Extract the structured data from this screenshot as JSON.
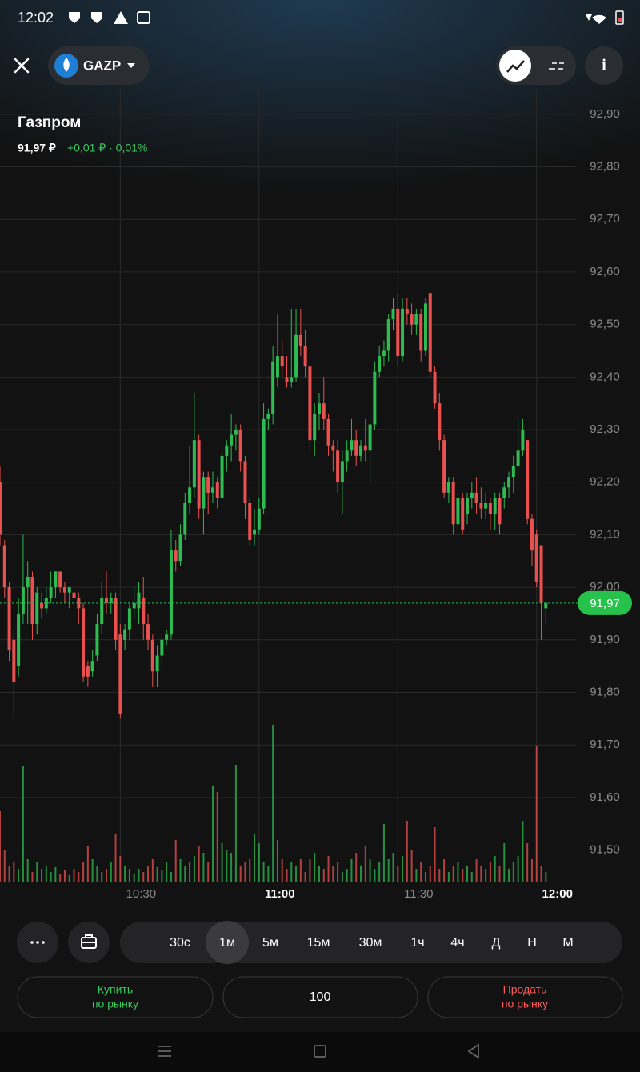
{
  "status_bar": {
    "time": "12:02"
  },
  "header": {
    "ticker": "GAZP",
    "name": "Газпром",
    "price": "91,97 ₽",
    "change": "+0,01 ₽ · 0,01%"
  },
  "chart_data": {
    "type": "candlestick",
    "x": [
      "10:04",
      "10:05",
      "10:06",
      "10:07",
      "10:08",
      "10:09",
      "10:10",
      "10:11",
      "10:12",
      "10:13",
      "10:14",
      "10:15",
      "10:16",
      "10:17",
      "10:18",
      "10:19",
      "10:20",
      "10:21",
      "10:22",
      "10:23",
      "10:24",
      "10:25",
      "10:26",
      "10:27",
      "10:28",
      "10:29",
      "10:30",
      "10:31",
      "10:32",
      "10:33",
      "10:34",
      "10:35",
      "10:36",
      "10:37",
      "10:38",
      "10:39",
      "10:40",
      "10:41",
      "10:42",
      "10:43",
      "10:44",
      "10:45",
      "10:46",
      "10:47",
      "10:48",
      "10:49",
      "10:50",
      "10:51",
      "10:52",
      "10:53",
      "10:54",
      "10:55",
      "10:56",
      "10:57",
      "10:58",
      "10:59",
      "11:00",
      "11:01",
      "11:02",
      "11:03",
      "11:04",
      "11:05",
      "11:06",
      "11:07",
      "11:08",
      "11:09",
      "11:10",
      "11:11",
      "11:12",
      "11:13",
      "11:14",
      "11:15",
      "11:16",
      "11:17",
      "11:18",
      "11:19",
      "11:20",
      "11:21",
      "11:22",
      "11:23",
      "11:24",
      "11:25",
      "11:26",
      "11:27",
      "11:28",
      "11:29",
      "11:30",
      "11:31",
      "11:32",
      "11:33",
      "11:34",
      "11:35",
      "11:36",
      "11:37",
      "11:38",
      "11:39",
      "11:40",
      "11:41",
      "11:42",
      "11:43",
      "11:44",
      "11:45",
      "11:46",
      "11:47",
      "11:48",
      "11:49",
      "11:50",
      "11:51",
      "11:52",
      "11:53",
      "11:54",
      "11:55",
      "11:56",
      "11:57",
      "11:58",
      "11:59",
      "12:00",
      "12:01",
      "12:02"
    ],
    "open": [
      92.2,
      92.08,
      92.0,
      91.9,
      91.85,
      91.95,
      92.0,
      92.02,
      91.93,
      91.97,
      91.96,
      91.98,
      92.0,
      92.03,
      92.0,
      91.99,
      91.99,
      91.98,
      91.96,
      91.85,
      91.84,
      91.87,
      91.93,
      91.98,
      91.97,
      91.98,
      91.91,
      91.9,
      91.92,
      91.96,
      91.96,
      91.98,
      91.93,
      91.9,
      91.84,
      91.87,
      91.9,
      91.91,
      92.07,
      92.05,
      92.1,
      92.16,
      92.19,
      92.28,
      92.15,
      92.21,
      92.18,
      92.2,
      92.17,
      92.25,
      92.27,
      92.29,
      92.3,
      92.24,
      92.16,
      92.1,
      92.11,
      92.15,
      92.32,
      92.33,
      92.4,
      92.44,
      92.4,
      92.39,
      92.4,
      92.48,
      92.46,
      92.42,
      92.28,
      92.33,
      92.35,
      92.32,
      92.27,
      92.26,
      92.2,
      92.24,
      92.26,
      92.28,
      92.25,
      92.27,
      92.26,
      92.31,
      92.41,
      92.44,
      92.45,
      92.51,
      92.53,
      92.44,
      92.53,
      92.52,
      92.5,
      92.52,
      92.45,
      92.56,
      92.41,
      92.35,
      92.28,
      92.18,
      92.2,
      92.12,
      92.17,
      92.14,
      92.17,
      92.18,
      92.16,
      92.15,
      92.16,
      92.14,
      92.17,
      92.17,
      92.19,
      92.21,
      92.23,
      92.26,
      92.28,
      92.13,
      92.1,
      92.08,
      91.96
    ],
    "high": [
      92.23,
      92.09,
      92.01,
      91.92,
      91.98,
      92.1,
      92.05,
      92.03,
      92.0,
      91.99,
      92.0,
      92.03,
      92.03,
      92.03,
      92.01,
      92.0,
      92.0,
      91.99,
      91.97,
      91.86,
      91.88,
      91.95,
      92.01,
      92.03,
      91.99,
      91.99,
      91.93,
      91.93,
      91.97,
      92.0,
      92.01,
      92.02,
      91.95,
      91.91,
      91.89,
      91.91,
      91.92,
      92.11,
      92.09,
      92.12,
      92.18,
      92.27,
      92.37,
      92.29,
      92.22,
      92.22,
      92.22,
      92.21,
      92.26,
      92.28,
      92.33,
      92.31,
      92.31,
      92.25,
      92.17,
      92.15,
      92.17,
      92.35,
      92.34,
      92.46,
      92.52,
      92.47,
      92.44,
      92.53,
      92.53,
      92.53,
      92.49,
      92.43,
      92.35,
      92.37,
      92.4,
      92.33,
      92.28,
      92.28,
      92.26,
      92.28,
      92.32,
      92.3,
      92.28,
      92.32,
      92.33,
      92.43,
      92.46,
      92.47,
      92.52,
      92.55,
      92.56,
      92.55,
      92.55,
      92.54,
      92.53,
      92.53,
      92.55,
      92.56,
      92.42,
      92.37,
      92.29,
      92.21,
      92.21,
      92.18,
      92.18,
      92.18,
      92.2,
      92.21,
      92.19,
      92.18,
      92.17,
      92.18,
      92.18,
      92.2,
      92.22,
      92.25,
      92.32,
      92.32,
      92.28,
      92.14,
      92.11,
      92.08,
      91.97
    ],
    "low": [
      92.08,
      91.98,
      91.86,
      91.75,
      91.83,
      91.93,
      91.93,
      91.9,
      91.91,
      91.94,
      91.95,
      91.97,
      91.98,
      91.99,
      91.97,
      91.96,
      91.95,
      91.93,
      91.82,
      91.81,
      91.83,
      91.86,
      91.91,
      91.95,
      91.95,
      91.88,
      91.75,
      91.88,
      91.9,
      91.94,
      91.93,
      91.9,
      91.88,
      91.81,
      91.81,
      91.85,
      91.89,
      91.9,
      92.03,
      92.04,
      92.09,
      92.14,
      92.17,
      92.13,
      92.1,
      92.14,
      92.16,
      92.15,
      92.16,
      92.22,
      92.24,
      92.26,
      92.22,
      92.13,
      92.08,
      92.08,
      92.1,
      92.14,
      92.3,
      92.31,
      92.38,
      92.4,
      92.38,
      92.38,
      92.39,
      92.44,
      92.4,
      92.26,
      92.25,
      92.3,
      92.3,
      92.25,
      92.22,
      92.18,
      92.14,
      92.22,
      92.25,
      92.23,
      92.24,
      92.24,
      92.2,
      92.3,
      92.4,
      92.42,
      92.43,
      92.49,
      92.42,
      92.43,
      92.5,
      92.48,
      92.48,
      92.43,
      92.44,
      92.4,
      92.34,
      92.26,
      92.17,
      92.16,
      92.1,
      92.11,
      92.1,
      92.12,
      92.15,
      92.14,
      92.13,
      92.13,
      92.11,
      92.11,
      92.1,
      92.15,
      92.17,
      92.18,
      92.21,
      92.25,
      92.12,
      92.04,
      92.0,
      91.9,
      91.93
    ],
    "close": [
      92.1,
      92.0,
      91.88,
      91.82,
      91.95,
      92.0,
      92.02,
      91.93,
      91.99,
      91.96,
      91.98,
      92.0,
      92.03,
      92.0,
      91.99,
      92.0,
      91.98,
      91.96,
      91.83,
      91.83,
      91.86,
      91.93,
      91.98,
      91.97,
      91.98,
      91.9,
      91.76,
      91.92,
      91.96,
      91.97,
      91.99,
      91.93,
      91.9,
      91.84,
      91.87,
      91.9,
      91.91,
      92.07,
      92.05,
      92.1,
      92.16,
      92.19,
      92.28,
      92.15,
      92.21,
      92.18,
      92.19,
      92.17,
      92.25,
      92.27,
      92.29,
      92.3,
      92.24,
      92.16,
      92.09,
      92.11,
      92.15,
      92.32,
      92.33,
      92.43,
      92.44,
      92.42,
      92.39,
      92.4,
      92.48,
      92.46,
      92.42,
      92.28,
      92.33,
      92.35,
      92.32,
      92.27,
      92.26,
      92.2,
      92.24,
      92.26,
      92.28,
      92.25,
      92.27,
      92.26,
      92.31,
      92.41,
      92.44,
      92.45,
      92.51,
      92.53,
      92.44,
      92.53,
      92.52,
      92.5,
      92.52,
      92.45,
      92.54,
      92.41,
      92.35,
      92.28,
      92.18,
      92.2,
      92.12,
      92.17,
      92.11,
      92.17,
      92.18,
      92.16,
      92.15,
      92.16,
      92.14,
      92.17,
      92.12,
      92.19,
      92.21,
      92.23,
      92.26,
      92.3,
      92.13,
      92.07,
      92.01,
      91.97,
      91.97
    ],
    "volume": [
      44,
      20,
      10,
      12,
      8,
      72,
      14,
      6,
      12,
      8,
      10,
      6,
      9,
      5,
      7,
      4,
      8,
      6,
      12,
      22,
      14,
      10,
      6,
      8,
      12,
      30,
      16,
      10,
      8,
      5,
      8,
      6,
      10,
      14,
      9,
      7,
      12,
      6,
      26,
      14,
      10,
      12,
      16,
      22,
      18,
      12,
      60,
      56,
      24,
      20,
      18,
      73,
      10,
      12,
      14,
      30,
      24,
      12,
      10,
      98,
      26,
      14,
      8,
      12,
      10,
      14,
      6,
      14,
      18,
      10,
      8,
      16,
      10,
      12,
      6,
      8,
      14,
      18,
      10,
      22,
      14,
      8,
      12,
      36,
      14,
      18,
      10,
      16,
      38,
      20,
      8,
      12,
      6,
      10,
      34,
      8,
      14,
      6,
      10,
      12,
      8,
      10,
      6,
      14,
      10,
      8,
      12,
      16,
      10,
      24,
      8,
      12,
      16,
      38,
      24,
      14,
      85,
      10,
      6
    ],
    "up_color": "#2dbb52",
    "down_color": "#e8514f",
    "xlim": [
      "10:04",
      "12:08"
    ],
    "xticks": [
      "10:30",
      "11:00",
      "11:30",
      "12:00"
    ],
    "ylim": [
      91.44,
      92.95
    ],
    "yticks": [
      {
        "value": 91.5,
        "label": "91,50"
      },
      {
        "value": 91.6,
        "label": "91,60"
      },
      {
        "value": 91.7,
        "label": "91,70"
      },
      {
        "value": 91.8,
        "label": "91,80"
      },
      {
        "value": 91.9,
        "label": "91,90"
      },
      {
        "value": 92.0,
        "label": "92,00"
      },
      {
        "value": 92.1,
        "label": "92,10"
      },
      {
        "value": 92.2,
        "label": "92,20"
      },
      {
        "value": 92.3,
        "label": "92,30"
      },
      {
        "value": 92.4,
        "label": "92,40"
      },
      {
        "value": 92.5,
        "label": "92,50"
      },
      {
        "value": 92.6,
        "label": "92,60"
      },
      {
        "value": 92.7,
        "label": "92,70"
      },
      {
        "value": 92.8,
        "label": "92,80"
      },
      {
        "value": 92.9,
        "label": "92,90"
      }
    ],
    "vlim": [
      0,
      100
    ],
    "last_price": {
      "value": 91.97,
      "label": "91,97"
    },
    "grid": true
  },
  "timeframes": {
    "options": [
      "30с",
      "1м",
      "5м",
      "15м",
      "30м",
      "1ч",
      "4ч",
      "Д",
      "Н",
      "М"
    ],
    "selected": 1
  },
  "order_bar": {
    "buy": [
      "Купить",
      "по рынку"
    ],
    "quantity": "100",
    "sell": [
      "Продать",
      "по рынку"
    ]
  }
}
